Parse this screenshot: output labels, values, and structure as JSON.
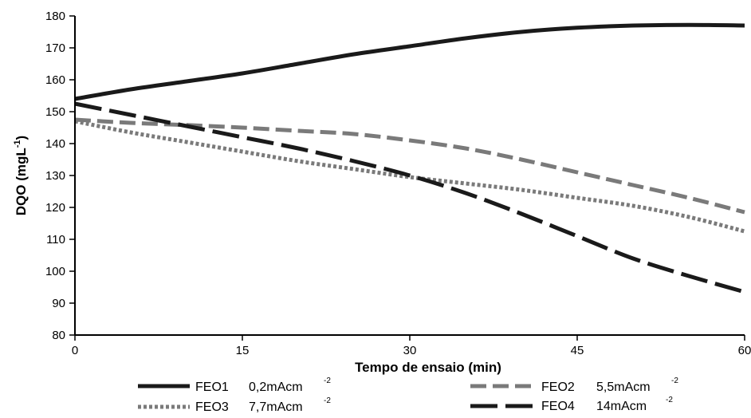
{
  "chart_data": {
    "type": "line",
    "title": "",
    "xlabel": "Tempo de ensaio (min)",
    "ylabel": "DQO (mgL",
    "ylabel_sup": "-1",
    "ylabel_close": ")",
    "xlim": [
      0,
      60
    ],
    "ylim": [
      80,
      180
    ],
    "xticks": [
      0,
      15,
      30,
      45,
      60
    ],
    "yticks": [
      80,
      90,
      100,
      110,
      120,
      130,
      140,
      150,
      160,
      170,
      180
    ],
    "grid": false,
    "legend_position": "bottom",
    "x": [
      0,
      5,
      10,
      15,
      20,
      25,
      30,
      35,
      40,
      45,
      50,
      55,
      60
    ],
    "series": [
      {
        "name": "FEO1",
        "legend_value": "0,2mAcm",
        "legend_sup": "-2",
        "color": "#1a1a1a",
        "style": "solid",
        "values": [
          154,
          157,
          159.5,
          162,
          165,
          168,
          170.5,
          173,
          175,
          176.3,
          177,
          177.2,
          177
        ]
      },
      {
        "name": "FEO2",
        "legend_value": "5,5mAcm",
        "legend_sup": "-2",
        "color": "#7a7a7a",
        "style": "dashed",
        "values": [
          147.5,
          146.5,
          145.8,
          145,
          144,
          143,
          141,
          138.5,
          135,
          131,
          127,
          123,
          118.5
        ]
      },
      {
        "name": "FEO3",
        "legend_value": "7,7mAcm",
        "legend_sup": "-2",
        "color": "#7a7a7a",
        "style": "dotted",
        "values": [
          147,
          143.5,
          140.5,
          137.5,
          134.5,
          132,
          129.5,
          127.5,
          125.5,
          123,
          120.5,
          117,
          112.5
        ]
      },
      {
        "name": "FEO4",
        "legend_value": "14mAcm",
        "legend_sup": "-2",
        "color": "#1a1a1a",
        "style": "longdash",
        "values": [
          152.5,
          149,
          145.5,
          142,
          138.5,
          134.5,
          130,
          124.5,
          118,
          111,
          104,
          98.5,
          93.5
        ]
      }
    ]
  }
}
